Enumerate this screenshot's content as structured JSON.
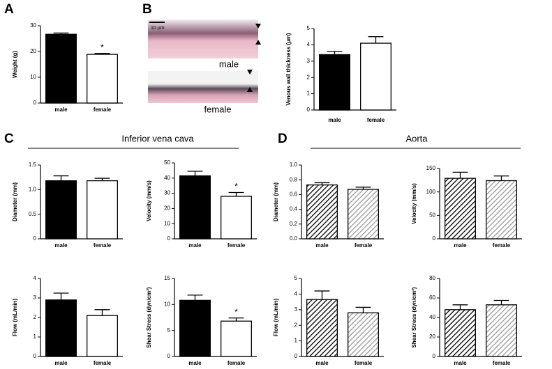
{
  "figure": {
    "panel_labels": [
      "A",
      "B",
      "C",
      "D"
    ],
    "section_titles": [
      "Inferior vena cava",
      "Aorta"
    ],
    "micrograph": {
      "scale_bar": "10 µm",
      "labels": [
        "male",
        "female"
      ]
    }
  },
  "chart_data": [
    {
      "type": "bar",
      "ylabel": "Weight (g)",
      "categories": [
        "male",
        "female"
      ],
      "values": [
        26.7,
        18.9
      ],
      "errors": [
        0.5,
        0.4
      ],
      "colors": [
        "#000000",
        "#ffffff"
      ],
      "hatch": false,
      "ylim": [
        0,
        30
      ],
      "yticks": [
        0,
        10,
        20,
        30
      ],
      "markers": [
        null,
        "*"
      ]
    },
    {
      "type": "bar",
      "ylabel": "Venous wall thickness (µm)",
      "categories": [
        "male",
        "female"
      ],
      "values": [
        3.4,
        4.1
      ],
      "errors": [
        0.2,
        0.4
      ],
      "colors": [
        "#000000",
        "#ffffff"
      ],
      "hatch": false,
      "ylim": [
        0,
        5
      ],
      "yticks": [
        0,
        1,
        2,
        3,
        4,
        5
      ]
    },
    {
      "type": "bar",
      "ylabel": "Diameter (mm)",
      "categories": [
        "male",
        "female"
      ],
      "values": [
        1.18,
        1.18
      ],
      "errors": [
        0.1,
        0.05
      ],
      "colors": [
        "#000000",
        "#ffffff"
      ],
      "hatch": false,
      "ylim": [
        0,
        1.5
      ],
      "yticks": [
        0,
        0.5,
        {
          "value": 1,
          "label": "1.0"
        },
        1.5
      ]
    },
    {
      "type": "bar",
      "ylabel": "Velocity (mm/s)",
      "categories": [
        "male",
        "female"
      ],
      "values": [
        41.5,
        28
      ],
      "errors": [
        3,
        2.5
      ],
      "colors": [
        "#000000",
        "#ffffff"
      ],
      "hatch": false,
      "ylim": [
        0,
        50
      ],
      "yticks": [
        0,
        10,
        20,
        30,
        40,
        50
      ],
      "markers": [
        null,
        "*"
      ]
    },
    {
      "type": "bar",
      "ylabel": "Flow (mL/min)",
      "categories": [
        "male",
        "female"
      ],
      "values": [
        2.9,
        2.1
      ],
      "errors": [
        0.35,
        0.3
      ],
      "colors": [
        "#000000",
        "#ffffff"
      ],
      "hatch": false,
      "ylim": [
        0,
        4
      ],
      "yticks": [
        0,
        1,
        2,
        3,
        4
      ]
    },
    {
      "type": "bar",
      "ylabel": "Shear Stress (dyn/cm²)",
      "categories": [
        "male",
        "female"
      ],
      "values": [
        10.8,
        6.8
      ],
      "errors": [
        1,
        0.6
      ],
      "colors": [
        "#000000",
        "#ffffff"
      ],
      "hatch": false,
      "ylim": [
        0,
        15
      ],
      "yticks": [
        0,
        5,
        10,
        15
      ],
      "markers": [
        null,
        "*"
      ]
    },
    {
      "type": "bar",
      "ylabel": "Diameter (mm)",
      "categories": [
        "male",
        "female"
      ],
      "values": [
        0.73,
        0.67
      ],
      "errors": [
        0.03,
        0.03
      ],
      "colors": [
        "#000000",
        "#999999"
      ],
      "hatch": true,
      "ylim": [
        0,
        1
      ],
      "yticks": [
        {
          "value": 0,
          "label": "0.0"
        },
        0.2,
        0.4,
        0.6,
        0.8,
        {
          "value": 1,
          "label": "1.0"
        }
      ]
    },
    {
      "type": "bar",
      "ylabel": "Velocity (mm/s)",
      "categories": [
        "male",
        "female"
      ],
      "values": [
        129,
        124
      ],
      "errors": [
        13,
        10
      ],
      "colors": [
        "#000000",
        "#999999"
      ],
      "hatch": true,
      "ylim": [
        0,
        150
      ],
      "yticks": [
        0,
        50,
        100,
        150
      ]
    },
    {
      "type": "bar",
      "ylabel": "Flow (mL/min)",
      "categories": [
        "male",
        "female"
      ],
      "values": [
        3.65,
        2.8
      ],
      "errors": [
        0.55,
        0.35
      ],
      "colors": [
        "#000000",
        "#999999"
      ],
      "hatch": true,
      "ylim": [
        0,
        5
      ],
      "yticks": [
        0,
        1,
        2,
        3,
        4,
        5
      ]
    },
    {
      "type": "bar",
      "ylabel": "Shear Stress (dyn/cm²)",
      "categories": [
        "male",
        "female"
      ],
      "values": [
        48,
        53
      ],
      "errors": [
        5,
        4.5
      ],
      "colors": [
        "#000000",
        "#999999"
      ],
      "hatch": true,
      "ylim": [
        0,
        80
      ],
      "yticks": [
        0,
        20,
        40,
        60,
        80
      ]
    }
  ]
}
